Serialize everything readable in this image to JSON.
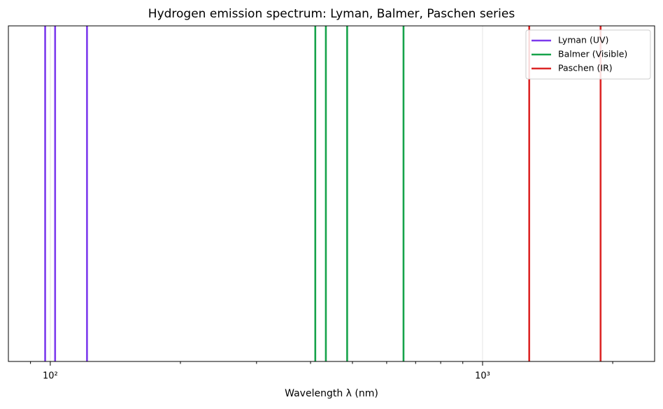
{
  "chart_data": {
    "type": "vlines",
    "title": "Hydrogen emission spectrum: Lyman, Balmer, Paschen series",
    "x_label": "Wavelength λ (nm)",
    "x_scale": "log",
    "xlim": [
      80,
      2500
    ],
    "xticks": [
      {
        "value": 100,
        "label": "10²"
      },
      {
        "value": 1000,
        "label": "10³"
      }
    ],
    "xminorticks": [
      90,
      200,
      300,
      400,
      500,
      600,
      700,
      800,
      900,
      2000
    ],
    "grid": true,
    "legend": "upper right",
    "series": [
      {
        "name": "Lyman (UV)",
        "color": "#7c3aed",
        "x": [
          97.3,
          102.6,
          121.6
        ]
      },
      {
        "name": "Balmer (Visible)",
        "color": "#16a34a",
        "x": [
          410.2,
          434.0,
          486.1,
          656.3
        ]
      },
      {
        "name": "Paschen (IR)",
        "color": "#dc2626",
        "x": [
          1282,
          1875
        ]
      }
    ]
  }
}
